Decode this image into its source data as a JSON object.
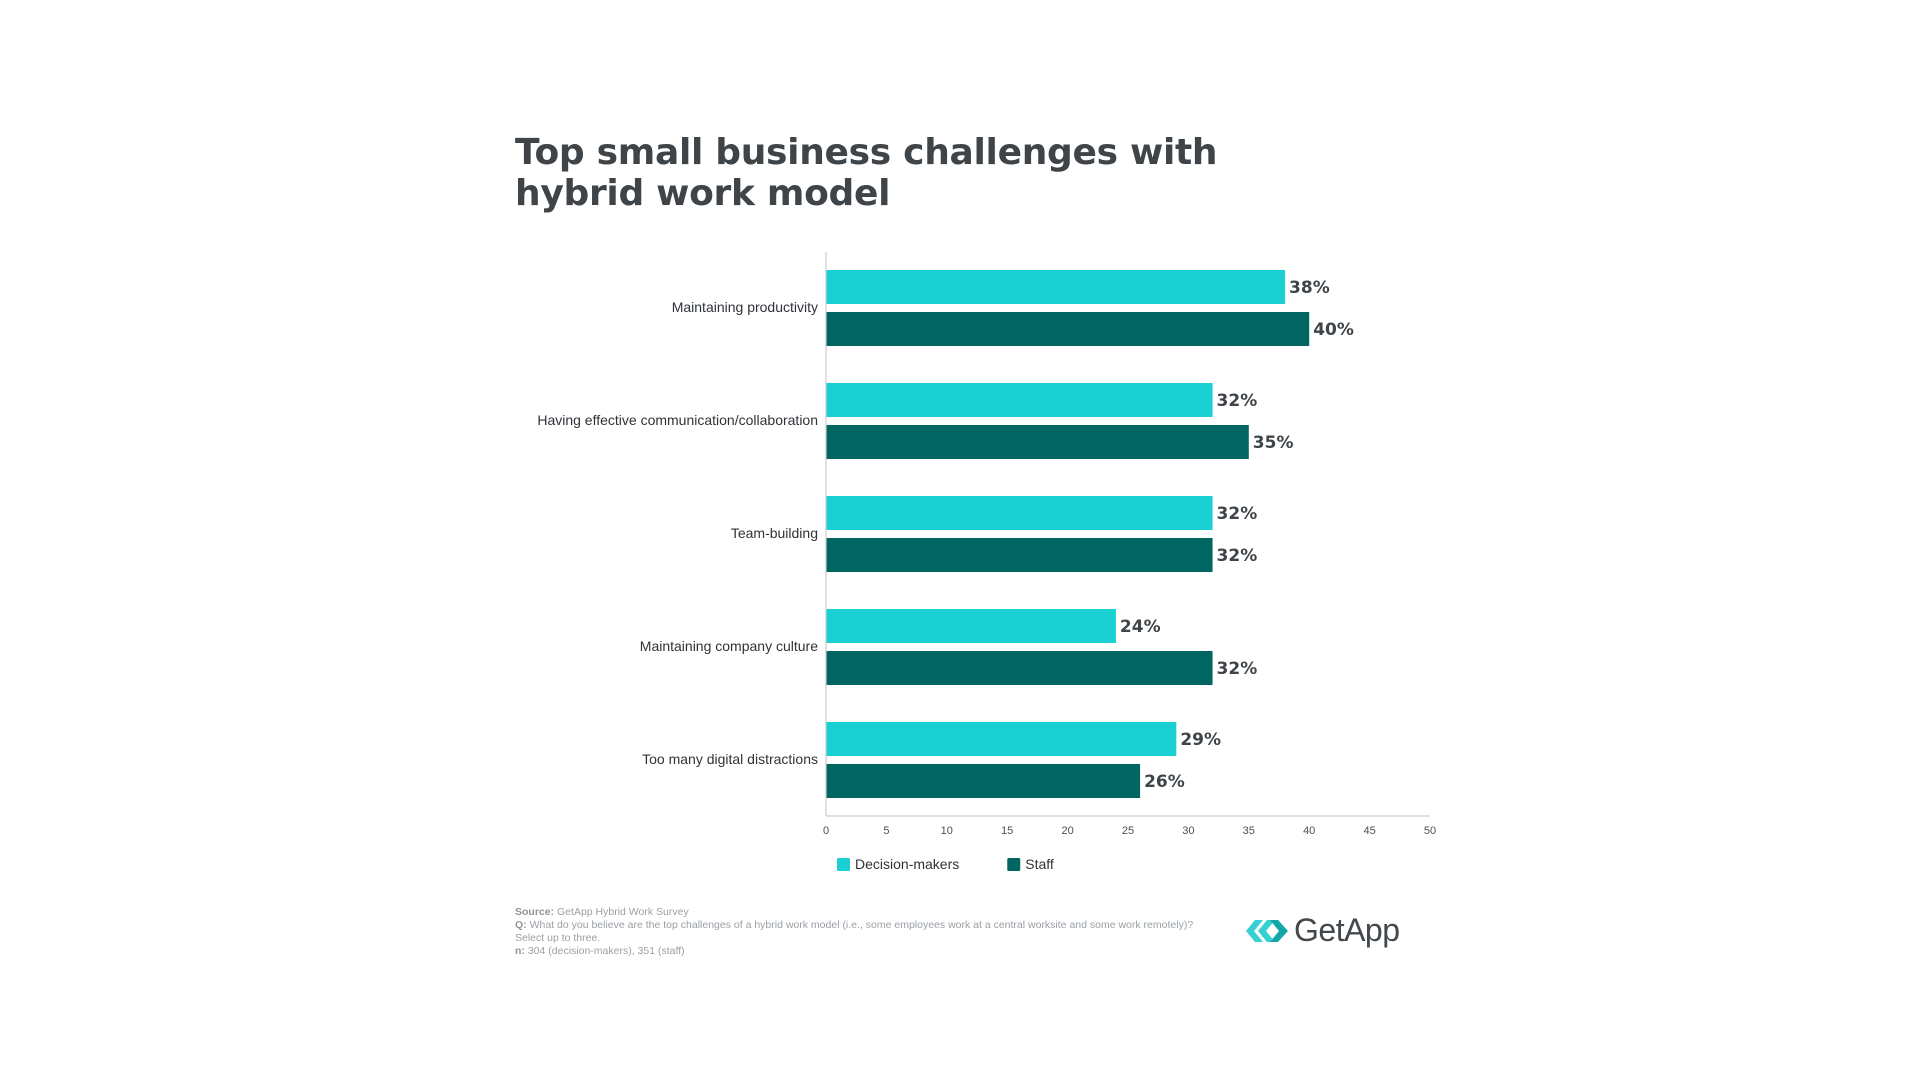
{
  "chart_data": {
    "type": "bar",
    "orientation": "horizontal",
    "title": "Top small business challenges with hybrid work model",
    "categories": [
      "Maintaining productivity",
      "Having effective communication/collaboration",
      "Team-building",
      "Maintaining company culture",
      "Too many digital distractions"
    ],
    "series": [
      {
        "name": "Decision-makers",
        "color": "#1ad0d3",
        "values": [
          38,
          32,
          32,
          24,
          29
        ]
      },
      {
        "name": "Staff",
        "color": "#016662",
        "values": [
          40,
          35,
          32,
          32,
          26
        ]
      }
    ],
    "value_suffix": "%",
    "xlim": [
      0,
      50
    ],
    "xticks": [
      0,
      5,
      10,
      15,
      20,
      25,
      30,
      35,
      40,
      45,
      50
    ],
    "xlabel": "",
    "ylabel": "",
    "grid": false,
    "legend": "bottom-left"
  },
  "footnote": {
    "source_label": "Source:",
    "source_text": "GetApp Hybrid Work Survey",
    "q_label": "Q:",
    "q_text": "What do you believe are the top challenges of a hybrid work model (i.e., some employees work at a central worksite and some work remotely)? Select up to three.",
    "n_label": "n:",
    "n_text": "304 (decision-makers), 351 (staff)"
  },
  "logo": {
    "text": "GetApp",
    "color_light": "#35d0d1",
    "color_dark": "#15a7a8"
  }
}
